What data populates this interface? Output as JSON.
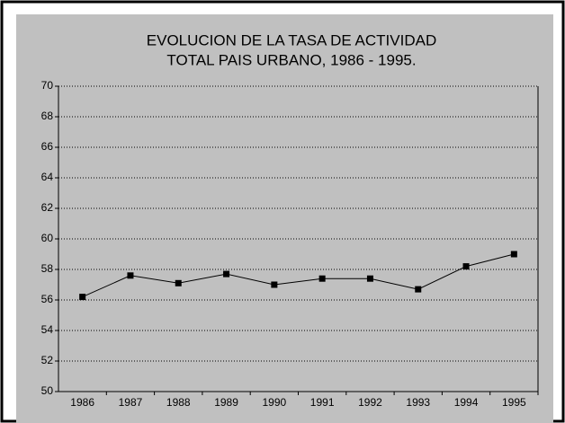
{
  "chart_data": {
    "type": "line",
    "title": [
      "EVOLUCION DE LA TASA DE ACTIVIDAD",
      "TOTAL PAIS URBANO, 1986 - 1995."
    ],
    "categories": [
      "1986",
      "1987",
      "1988",
      "1989",
      "1990",
      "1991",
      "1992",
      "1993",
      "1994",
      "1995"
    ],
    "values": [
      56.2,
      57.6,
      57.1,
      57.7,
      57.0,
      57.4,
      57.4,
      56.7,
      58.2,
      59.0
    ],
    "color": "#000000",
    "ylim": [
      50,
      70
    ],
    "yticks": [
      50,
      52,
      54,
      56,
      58,
      60,
      62,
      64,
      66,
      68,
      70
    ],
    "grid": true
  }
}
